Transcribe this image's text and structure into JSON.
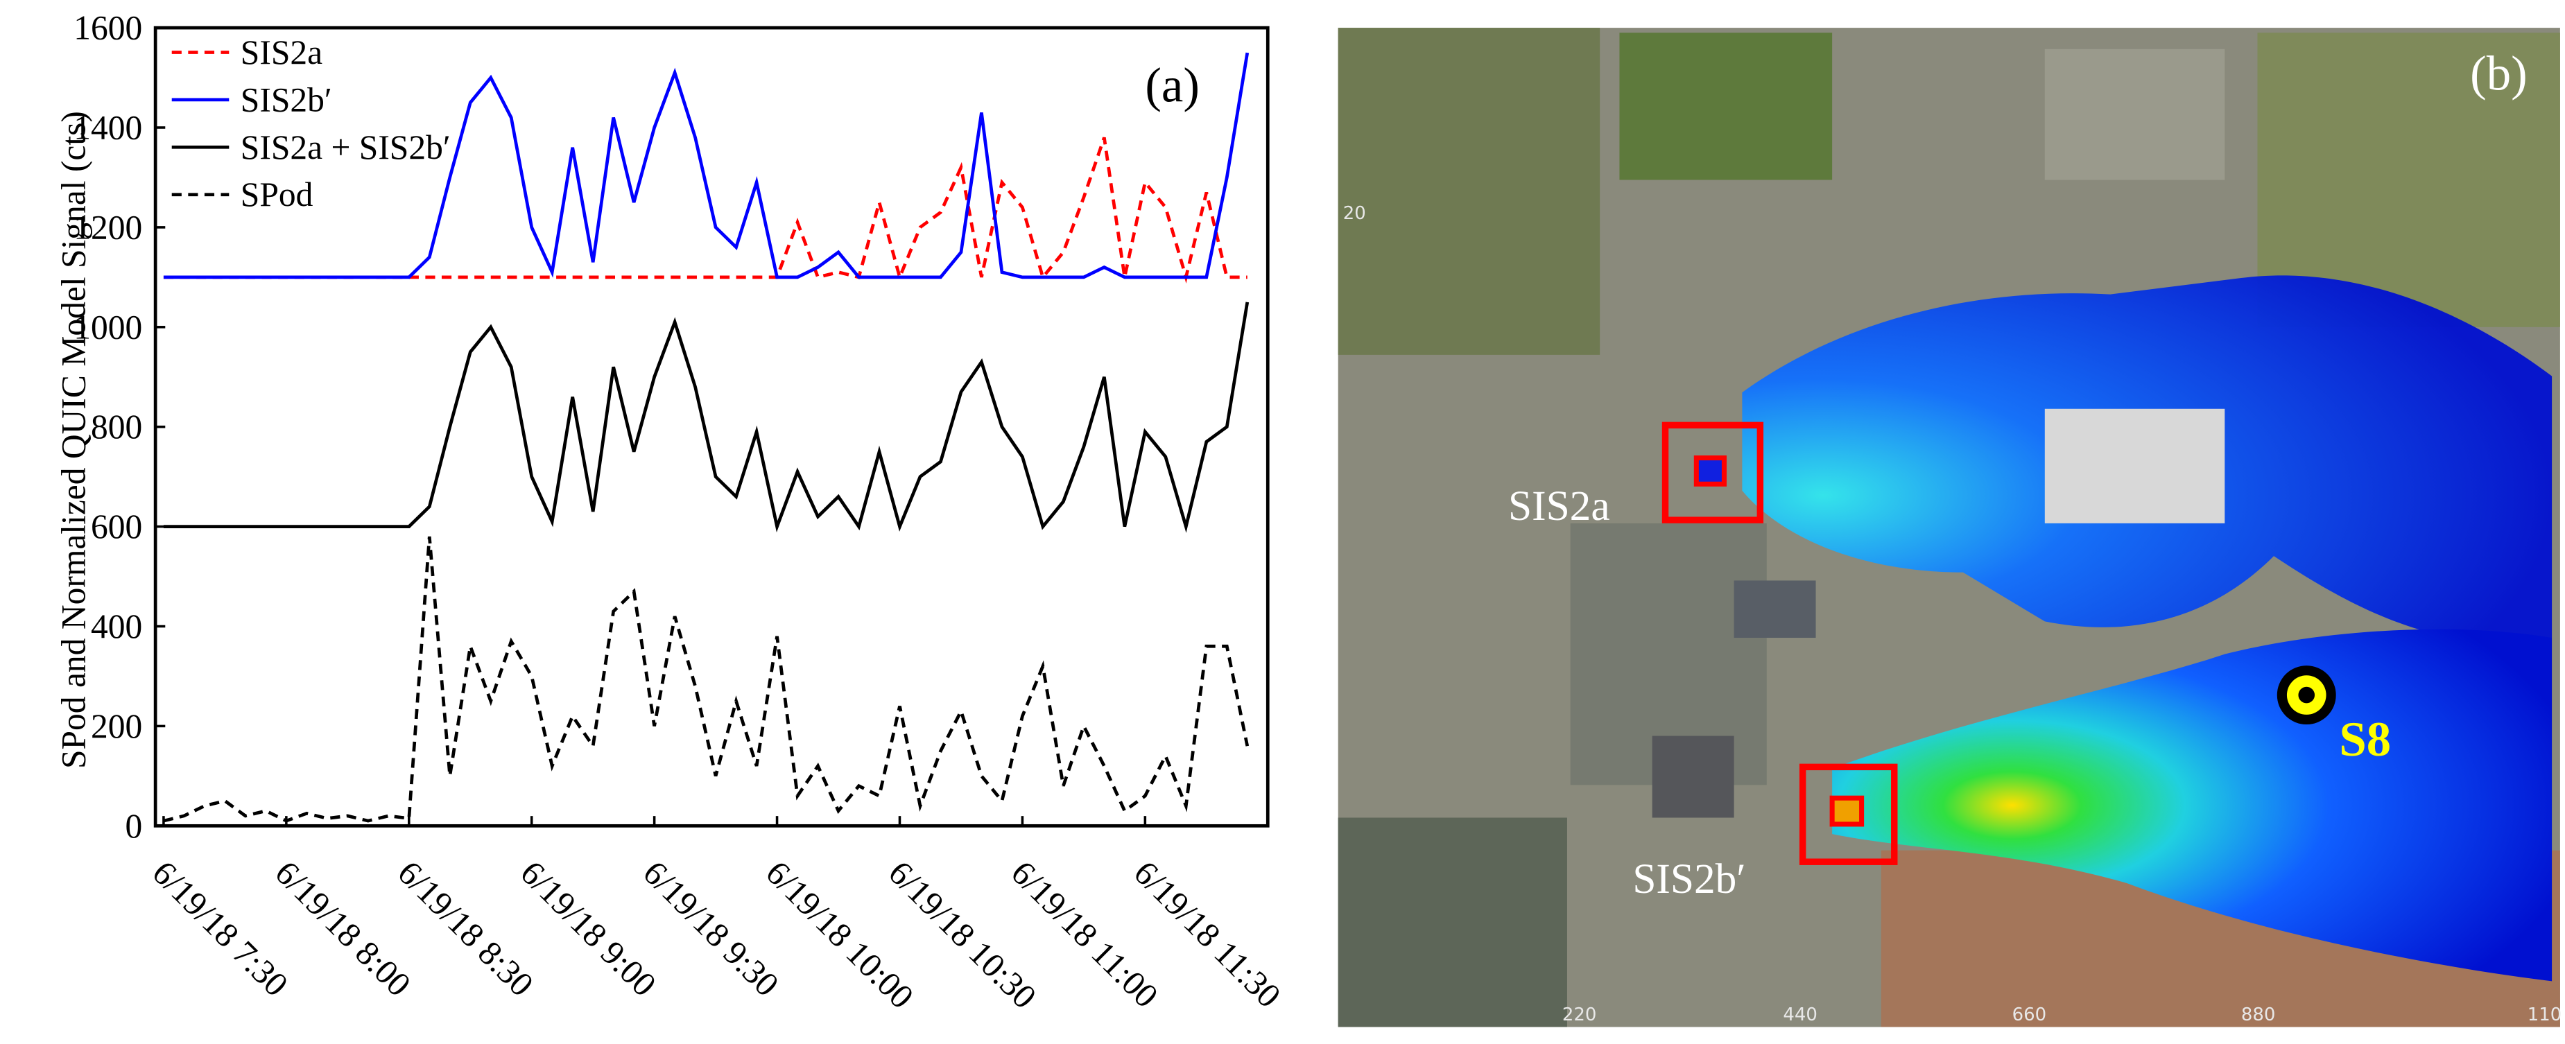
{
  "chart_data": {
    "type": "line",
    "panel_label": "(a)",
    "y_label": "SPod and Normalized  QUIC Model Signal (cts)",
    "x": [
      "6/19/18 7:30",
      "6/19/18 7:35",
      "6/19/18 7:40",
      "6/19/18 7:45",
      "6/19/18 7:50",
      "6/19/18 7:55",
      "6/19/18 8:00",
      "6/19/18 8:05",
      "6/19/18 8:10",
      "6/19/18 8:15",
      "6/19/18 8:20",
      "6/19/18 8:25",
      "6/19/18 8:30",
      "6/19/18 8:35",
      "6/19/18 8:40",
      "6/19/18 8:45",
      "6/19/18 8:50",
      "6/19/18 8:55",
      "6/19/18 9:00",
      "6/19/18 9:05",
      "6/19/18 9:10",
      "6/19/18 9:15",
      "6/19/18 9:20",
      "6/19/18 9:25",
      "6/19/18 9:30",
      "6/19/18 9:35",
      "6/19/18 9:40",
      "6/19/18 9:45",
      "6/19/18 9:50",
      "6/19/18 9:55",
      "6/19/18 10:00",
      "6/19/18 10:05",
      "6/19/18 10:10",
      "6/19/18 10:15",
      "6/19/18 10:20",
      "6/19/18 10:25",
      "6/19/18 10:30",
      "6/19/18 10:35",
      "6/19/18 10:40",
      "6/19/18 10:45",
      "6/19/18 10:50",
      "6/19/18 10:55",
      "6/19/18 11:00",
      "6/19/18 11:05",
      "6/19/18 11:10",
      "6/19/18 11:15",
      "6/19/18 11:20",
      "6/19/18 11:25",
      "6/19/18 11:30",
      "6/19/18 11:35",
      "6/19/18 11:40",
      "6/19/18 11:45",
      "6/19/18 11:50",
      "6/19/18 11:55"
    ],
    "series": [
      {
        "name": "SIS2a",
        "color": "#ff0000",
        "dash": true,
        "values": [
          1100,
          1100,
          1100,
          1100,
          1100,
          1100,
          1100,
          1100,
          1100,
          1100,
          1100,
          1100,
          1100,
          1100,
          1100,
          1100,
          1100,
          1100,
          1100,
          1100,
          1100,
          1100,
          1100,
          1100,
          1100,
          1100,
          1100,
          1100,
          1100,
          1100,
          1100,
          1210,
          1100,
          1110,
          1100,
          1250,
          1100,
          1200,
          1230,
          1320,
          1100,
          1290,
          1240,
          1100,
          1150,
          1260,
          1380,
          1100,
          1290,
          1240,
          1100,
          1270,
          1100,
          1100
        ]
      },
      {
        "name": "SIS2b′",
        "color": "#0000ff",
        "dash": false,
        "values": [
          1100,
          1100,
          1100,
          1100,
          1100,
          1100,
          1100,
          1100,
          1100,
          1100,
          1100,
          1100,
          1100,
          1140,
          1300,
          1450,
          1500,
          1420,
          1200,
          1110,
          1360,
          1130,
          1420,
          1250,
          1400,
          1510,
          1380,
          1200,
          1160,
          1290,
          1100,
          1100,
          1120,
          1150,
          1100,
          1100,
          1100,
          1100,
          1100,
          1150,
          1430,
          1110,
          1100,
          1100,
          1100,
          1100,
          1120,
          1100,
          1100,
          1100,
          1100,
          1100,
          1300,
          1550
        ]
      },
      {
        "name": "SIS2a + SIS2b′",
        "color": "#000000",
        "dash": false,
        "values": [
          600,
          600,
          600,
          600,
          600,
          600,
          600,
          600,
          600,
          600,
          600,
          600,
          600,
          640,
          800,
          950,
          1000,
          920,
          700,
          610,
          860,
          630,
          920,
          750,
          900,
          1010,
          880,
          700,
          660,
          790,
          600,
          710,
          620,
          660,
          600,
          750,
          600,
          700,
          730,
          870,
          930,
          800,
          740,
          600,
          650,
          760,
          900,
          600,
          790,
          740,
          600,
          770,
          800,
          1050
        ]
      },
      {
        "name": "SPod",
        "color": "#000000",
        "dash": true,
        "values": [
          10,
          20,
          40,
          50,
          20,
          30,
          10,
          25,
          15,
          20,
          10,
          20,
          15,
          580,
          100,
          360,
          250,
          370,
          300,
          120,
          220,
          160,
          430,
          470,
          200,
          420,
          280,
          100,
          250,
          120,
          380,
          60,
          120,
          30,
          80,
          60,
          240,
          40,
          150,
          230,
          100,
          50,
          220,
          320,
          80,
          200,
          120,
          30,
          60,
          140,
          40,
          360,
          360,
          160
        ]
      }
    ],
    "xlim": [
      "6/19/18 7:28",
      "6/19/18 12:00"
    ],
    "xticks": [
      "6/19/18 7:30",
      "6/19/18 8:00",
      "6/19/18 8:30",
      "6/19/18 9:00",
      "6/19/18 9:30",
      "6/19/18 10:00",
      "6/19/18 10:30",
      "6/19/18 11:00",
      "6/19/18 11:30"
    ],
    "ylim": [
      0,
      1600
    ],
    "yticks": [
      0,
      200,
      400,
      600,
      800,
      1000,
      1200,
      1400,
      1600
    ],
    "legend": "upper-left"
  },
  "map": {
    "panel_label": "(b)",
    "sources": [
      "SIS2a",
      "SIS2b′"
    ],
    "receptor": "S8",
    "x_axis_labels": [
      "220",
      "440",
      "660",
      "880",
      "110"
    ],
    "y_axis_labels": [
      "20"
    ]
  }
}
